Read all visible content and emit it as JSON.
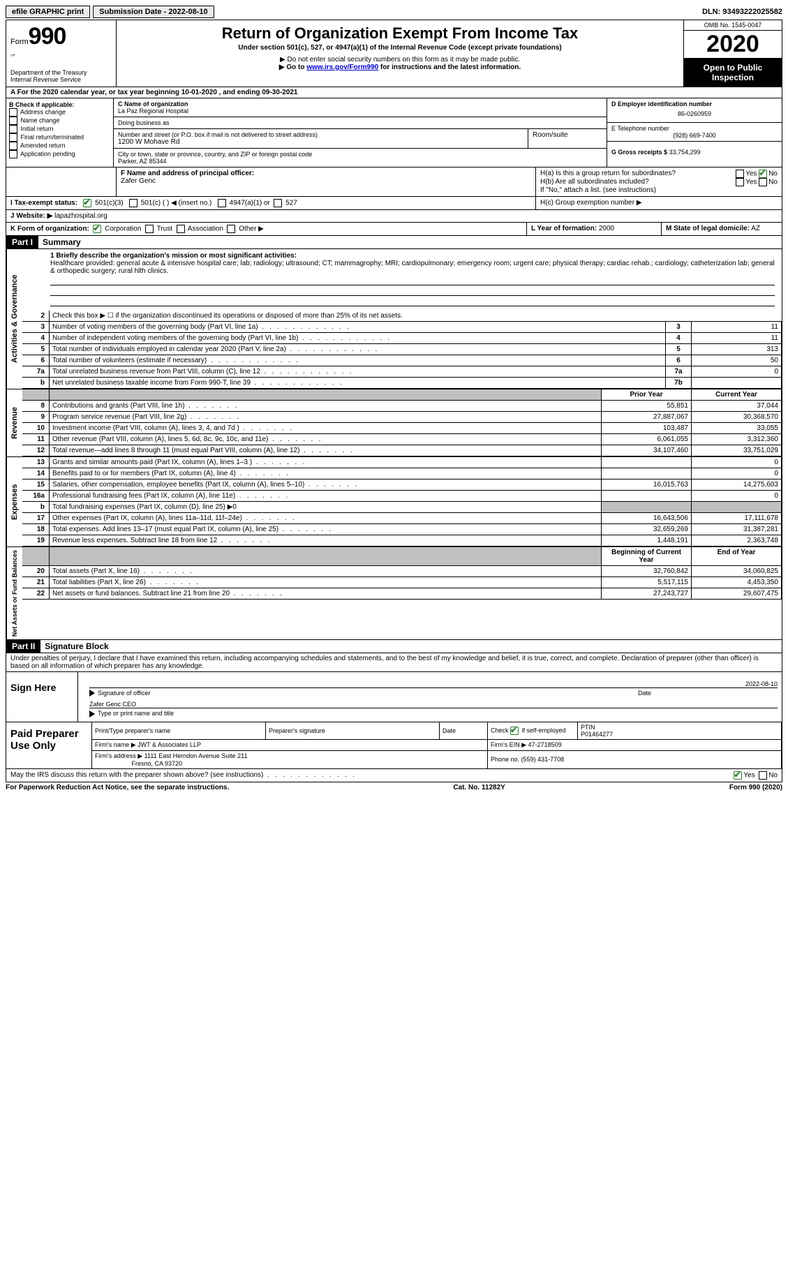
{
  "topbar": {
    "efile": "efile GRAPHIC print",
    "submission_label": "Submission Date - 2022-08-10",
    "dln_label": "DLN: 93493222025582"
  },
  "header": {
    "form_label": "Form",
    "form_num": "990",
    "dept": "Department of the Treasury\nInternal Revenue Service",
    "title": "Return of Organization Exempt From Income Tax",
    "subtitle": "Under section 501(c), 527, or 4947(a)(1) of the Internal Revenue Code (except private foundations)",
    "instr1": "▶ Do not enter social security numbers on this form as it may be made public.",
    "instr2_pre": "▶ Go to ",
    "instr2_link": "www.irs.gov/Form990",
    "instr2_post": " for instructions and the latest information.",
    "omb": "OMB No. 1545-0047",
    "year": "2020",
    "open": "Open to Public Inspection"
  },
  "line_a": "A For the 2020 calendar year, or tax year beginning 10-01-2020    , and ending 09-30-2021",
  "box_b": {
    "title": "B Check if applicable:",
    "items": [
      "Address change",
      "Name change",
      "Initial return",
      "Final return/terminated",
      "Amended return",
      "Application pending"
    ]
  },
  "box_c": {
    "name_lbl": "C Name of organization",
    "name": "La Paz Regional Hospital",
    "dba_lbl": "Doing business as",
    "addr_lbl": "Number and street (or P.O. box if mail is not delivered to street address)",
    "room_lbl": "Room/suite",
    "addr": "1200 W Mohave Rd",
    "city_lbl": "City or town, state or province, country, and ZIP or foreign postal code",
    "city": "Parker, AZ  85344"
  },
  "box_d": {
    "lbl": "D Employer identification number",
    "val": "86-0260959"
  },
  "box_e": {
    "lbl": "E Telephone number",
    "val": "(928) 669-7400"
  },
  "box_g": {
    "lbl": "G Gross receipts $",
    "val": "33,754,299"
  },
  "box_f": {
    "lbl": "F  Name and address of principal officer:",
    "name": "Zafer Genc"
  },
  "box_h": {
    "a": "H(a)  Is this a group return for subordinates?",
    "b": "H(b)  Are all subordinates included?",
    "note": "If \"No,\" attach a list. (see instructions)",
    "c": "H(c)  Group exemption number ▶",
    "yes": "Yes",
    "no": "No"
  },
  "row_i": {
    "lbl": "I  Tax-exempt status:",
    "o1": "501(c)(3)",
    "o2": "501(c) (  ) ◀ (insert no.)",
    "o3": "4947(a)(1) or",
    "o4": "527"
  },
  "row_j": {
    "lbl": "J  Website: ▶",
    "val": "lapazhospital.org"
  },
  "row_k": {
    "lbl": "K Form of organization:",
    "o1": "Corporation",
    "o2": "Trust",
    "o3": "Association",
    "o4": "Other ▶"
  },
  "row_l": {
    "lbl": "L Year of formation:",
    "val": "2000",
    "m_lbl": "M State of legal domicile:",
    "m_val": "AZ"
  },
  "part1": {
    "hdr": "Part I",
    "title": "Summary",
    "line1_lbl": "1  Briefly describe the organization's mission or most significant activities:",
    "mission": "Healthcare provided: general acute & intensive hospital care; lab; radiology; ultrasound; CT; mammagrophy; MRI; cardiopulmonary; emergency room; urgent care; physical therapy; cardiac rehab.; cardiology; catheterization lab; general & orthopedic surgery; rural hlth clinics.",
    "vtab1": "Activities & Governance",
    "vtab2": "Revenue",
    "vtab3": "Expenses",
    "vtab4": "Net Assets or Fund Balances",
    "gov": [
      {
        "n": "2",
        "d": "Check this box ▶ ☐ if the organization discontinued its operations or disposed of more than 25% of its net assets.",
        "b": "",
        "v": ""
      },
      {
        "n": "3",
        "d": "Number of voting members of the governing body (Part VI, line 1a)",
        "b": "3",
        "v": "11"
      },
      {
        "n": "4",
        "d": "Number of independent voting members of the governing body (Part VI, line 1b)",
        "b": "4",
        "v": "11"
      },
      {
        "n": "5",
        "d": "Total number of individuals employed in calendar year 2020 (Part V, line 2a)",
        "b": "5",
        "v": "313"
      },
      {
        "n": "6",
        "d": "Total number of volunteers (estimate if necessary)",
        "b": "6",
        "v": "50"
      },
      {
        "n": "7a",
        "d": "Total unrelated business revenue from Part VIII, column (C), line 12",
        "b": "7a",
        "v": "0"
      },
      {
        "n": "b",
        "d": "Net unrelated business taxable income from Form 990-T, line 39",
        "b": "7b",
        "v": ""
      }
    ],
    "col_prior": "Prior Year",
    "col_curr": "Current Year",
    "rev": [
      {
        "n": "8",
        "d": "Contributions and grants (Part VIII, line 1h)",
        "p": "55,851",
        "c": "37,044"
      },
      {
        "n": "9",
        "d": "Program service revenue (Part VIII, line 2g)",
        "p": "27,887,067",
        "c": "30,368,570"
      },
      {
        "n": "10",
        "d": "Investment income (Part VIII, column (A), lines 3, 4, and 7d )",
        "p": "103,487",
        "c": "33,055"
      },
      {
        "n": "11",
        "d": "Other revenue (Part VIII, column (A), lines 5, 6d, 8c, 9c, 10c, and 11e)",
        "p": "6,061,055",
        "c": "3,312,360"
      },
      {
        "n": "12",
        "d": "Total revenue—add lines 8 through 11 (must equal Part VIII, column (A), line 12)",
        "p": "34,107,460",
        "c": "33,751,029"
      }
    ],
    "exp": [
      {
        "n": "13",
        "d": "Grants and similar amounts paid (Part IX, column (A), lines 1–3 )",
        "p": "",
        "c": "0"
      },
      {
        "n": "14",
        "d": "Benefits paid to or for members (Part IX, column (A), line 4)",
        "p": "",
        "c": "0"
      },
      {
        "n": "15",
        "d": "Salaries, other compensation, employee benefits (Part IX, column (A), lines 5–10)",
        "p": "16,015,763",
        "c": "14,275,603"
      },
      {
        "n": "16a",
        "d": "Professional fundraising fees (Part IX, column (A), line 11e)",
        "p": "",
        "c": "0"
      },
      {
        "n": "b",
        "d": "Total fundraising expenses (Part IX, column (D), line 25) ▶0",
        "p": "gray",
        "c": "gray"
      },
      {
        "n": "17",
        "d": "Other expenses (Part IX, column (A), lines 11a–11d, 11f–24e)",
        "p": "16,643,506",
        "c": "17,111,678"
      },
      {
        "n": "18",
        "d": "Total expenses. Add lines 13–17 (must equal Part IX, column (A), line 25)",
        "p": "32,659,269",
        "c": "31,387,281"
      },
      {
        "n": "19",
        "d": "Revenue less expenses. Subtract line 18 from line 12",
        "p": "1,448,191",
        "c": "2,363,748"
      }
    ],
    "col_beg": "Beginning of Current Year",
    "col_end": "End of Year",
    "net": [
      {
        "n": "20",
        "d": "Total assets (Part X, line 16)",
        "p": "32,760,842",
        "c": "34,060,825"
      },
      {
        "n": "21",
        "d": "Total liabilities (Part X, line 26)",
        "p": "5,517,115",
        "c": "4,453,350"
      },
      {
        "n": "22",
        "d": "Net assets or fund balances. Subtract line 21 from line 20",
        "p": "27,243,727",
        "c": "29,607,475"
      }
    ]
  },
  "part2": {
    "hdr": "Part II",
    "title": "Signature Block",
    "penalty": "Under penalties of perjury, I declare that I have examined this return, including accompanying schedules and statements, and to the best of my knowledge and belief, it is true, correct, and complete. Declaration of preparer (other than officer) is based on all information of which preparer has any knowledge.",
    "sign_here": "Sign Here",
    "sig_officer": "Signature of officer",
    "sig_date": "2022-08-10",
    "date_lbl": "Date",
    "name_title": "Zafer Genc CEO",
    "type_lbl": "Type or print name and title",
    "paid": "Paid Preparer Use Only",
    "p_name_lbl": "Print/Type preparer's name",
    "p_sig_lbl": "Preparer's signature",
    "p_date_lbl": "Date",
    "p_check_lbl": "Check ☑ if self-employed",
    "ptin_lbl": "PTIN",
    "ptin": "P01464277",
    "firm_name_lbl": "Firm's name    ▶",
    "firm_name": "JWT & Associates LLP",
    "firm_ein_lbl": "Firm's EIN ▶",
    "firm_ein": "47-2718509",
    "firm_addr_lbl": "Firm's address ▶",
    "firm_addr1": "1111 East Herndon Avenue Suite 211",
    "firm_addr2": "Fresno, CA  93720",
    "phone_lbl": "Phone no.",
    "phone": "(559) 431-7708",
    "discuss": "May the IRS discuss this return with the preparer shown above? (see instructions)",
    "yes": "Yes",
    "no": "No"
  },
  "footer": {
    "left": "For Paperwork Reduction Act Notice, see the separate instructions.",
    "mid": "Cat. No. 11282Y",
    "right": "Form 990 (2020)"
  }
}
